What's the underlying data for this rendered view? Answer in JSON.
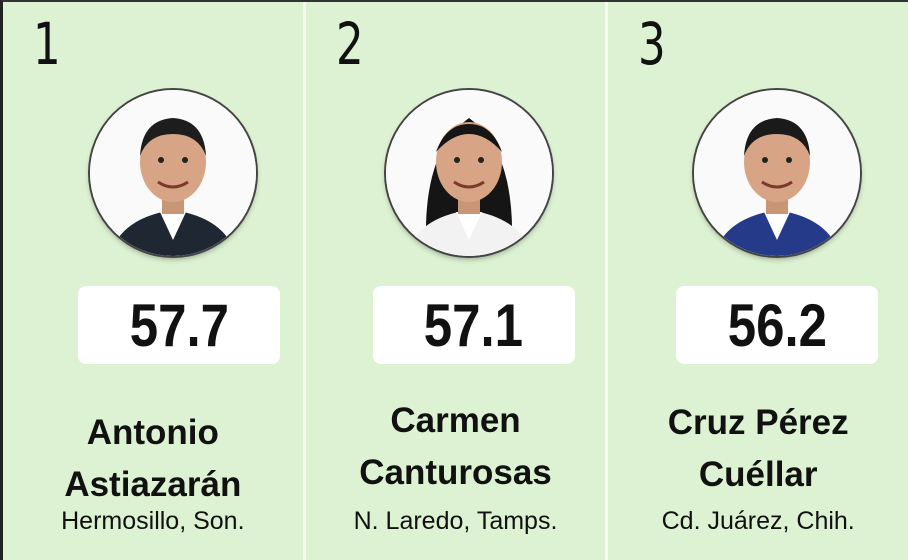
{
  "items": [
    {
      "rank": 1,
      "score": 57.7,
      "name": [
        "Antonio",
        "Astiazarán"
      ],
      "city": "Hermosillo, Son."
    },
    {
      "rank": 2,
      "score": 57.1,
      "name": [
        "Carmen",
        "Canturosas"
      ],
      "city": "N. Laredo, Tamps."
    },
    {
      "rank": 3,
      "score": 56.2,
      "name": [
        "Cruz Pérez",
        "Cuéllar"
      ],
      "city": "Cd. Juárez, Chih."
    }
  ]
}
